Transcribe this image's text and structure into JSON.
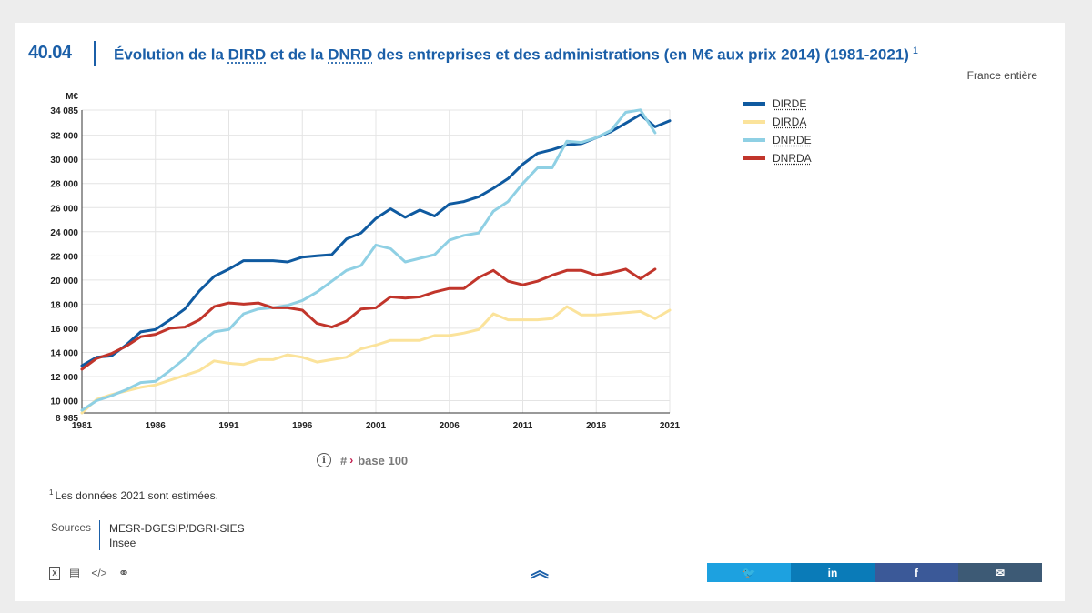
{
  "figure": {
    "number": "40.04",
    "title_parts": [
      "Évolution de la ",
      "DIRD",
      " et de la ",
      "DNRD",
      " des entreprises et des administrations (en M€ aux prix 2014) (1981-2021)"
    ],
    "title_note_ref": "1",
    "scope": "France entière"
  },
  "chart_data": {
    "type": "line",
    "ylabel": "M€",
    "xlim": [
      1981,
      2021
    ],
    "ylim": [
      8985,
      34085
    ],
    "x_ticks": [
      "1981",
      "1986",
      "1991",
      "1996",
      "2001",
      "2006",
      "2011",
      "2016",
      "2021"
    ],
    "y_ticks": [
      "8 985",
      "10 000",
      "12 000",
      "14 000",
      "16 000",
      "18 000",
      "20 000",
      "22 000",
      "24 000",
      "26 000",
      "28 000",
      "30 000",
      "32 000",
      "34 085"
    ],
    "grid": true,
    "legend_position": "right",
    "x": [
      1981,
      1982,
      1983,
      1984,
      1985,
      1986,
      1987,
      1988,
      1989,
      1990,
      1991,
      1992,
      1993,
      1994,
      1995,
      1996,
      1997,
      1998,
      1999,
      2000,
      2001,
      2002,
      2003,
      2004,
      2005,
      2006,
      2007,
      2008,
      2009,
      2010,
      2011,
      2012,
      2013,
      2014,
      2015,
      2016,
      2017,
      2018,
      2019,
      2020,
      2021
    ],
    "series": [
      {
        "name": "DIRDE",
        "color": "#0f5aa0",
        "values": [
          12900,
          13600,
          13700,
          14600,
          15700,
          15900,
          16700,
          17600,
          19100,
          20300,
          20900,
          21600,
          21600,
          21600,
          21500,
          21900,
          22000,
          22100,
          23400,
          23900,
          25100,
          25900,
          25200,
          25800,
          25300,
          26300,
          26500,
          26900,
          27600,
          28400,
          29600,
          30500,
          30800,
          31200,
          31300,
          31800,
          32300,
          33000,
          33700,
          32700,
          33200
        ]
      },
      {
        "name": "DIRDA",
        "color": "#fbe39b",
        "values": [
          8985,
          10100,
          10500,
          10800,
          11100,
          11300,
          11700,
          12100,
          12500,
          13300,
          13100,
          13000,
          13400,
          13400,
          13800,
          13600,
          13200,
          13400,
          13600,
          14300,
          14600,
          15000,
          15000,
          15000,
          15400,
          15400,
          15600,
          15900,
          17200,
          16700,
          16700,
          16700,
          16800,
          17800,
          17100,
          17100,
          17200,
          17300,
          17400,
          16800,
          17500
        ]
      },
      {
        "name": "DNRDE",
        "color": "#8fd0e4",
        "values": [
          9200,
          10000,
          10400,
          10900,
          11500,
          11600,
          12500,
          13500,
          14800,
          15700,
          15900,
          17200,
          17600,
          17700,
          17900,
          18300,
          19000,
          19900,
          20800,
          21200,
          22900,
          22600,
          21500,
          21800,
          22100,
          23300,
          23700,
          23900,
          25700,
          26500,
          28000,
          29300,
          29300,
          31500,
          31400,
          31800,
          32400,
          33900,
          34100,
          32200,
          null
        ]
      },
      {
        "name": "DNRDA",
        "color": "#c1352b",
        "values": [
          12600,
          13500,
          13900,
          14500,
          15300,
          15500,
          16000,
          16100,
          16700,
          17800,
          18100,
          18000,
          18100,
          17700,
          17700,
          17500,
          16400,
          16100,
          16600,
          17600,
          17700,
          18600,
          18500,
          18600,
          19000,
          19300,
          19300,
          20200,
          20800,
          19900,
          19600,
          19900,
          20400,
          20800,
          20800,
          20400,
          20600,
          20900,
          20100,
          20900,
          null
        ]
      }
    ]
  },
  "base100": {
    "hash": "#",
    "arrow": "›",
    "label": "base 100"
  },
  "footnote": {
    "ref": "1",
    "text": "Les données 2021 sont estimées."
  },
  "sources": {
    "label": "Sources",
    "items": [
      "MESR-DGESIP/DGRI-SIES",
      "Insee"
    ]
  },
  "tools": [
    {
      "icon": "excel-icon",
      "glyph": "X"
    },
    {
      "icon": "document-icon",
      "glyph": "▤"
    },
    {
      "icon": "code-icon",
      "glyph": "</>"
    },
    {
      "icon": "link-icon",
      "glyph": "⚭"
    }
  ],
  "share": [
    {
      "name": "twitter-share-button",
      "glyph": "🐦",
      "color": "#1da1e0"
    },
    {
      "name": "linkedin-share-button",
      "glyph": "in",
      "color": "#0a7bb8"
    },
    {
      "name": "facebook-share-button",
      "glyph": "f",
      "color": "#3b5998"
    },
    {
      "name": "email-share-button",
      "glyph": "✉",
      "color": "#3d5a75"
    }
  ]
}
